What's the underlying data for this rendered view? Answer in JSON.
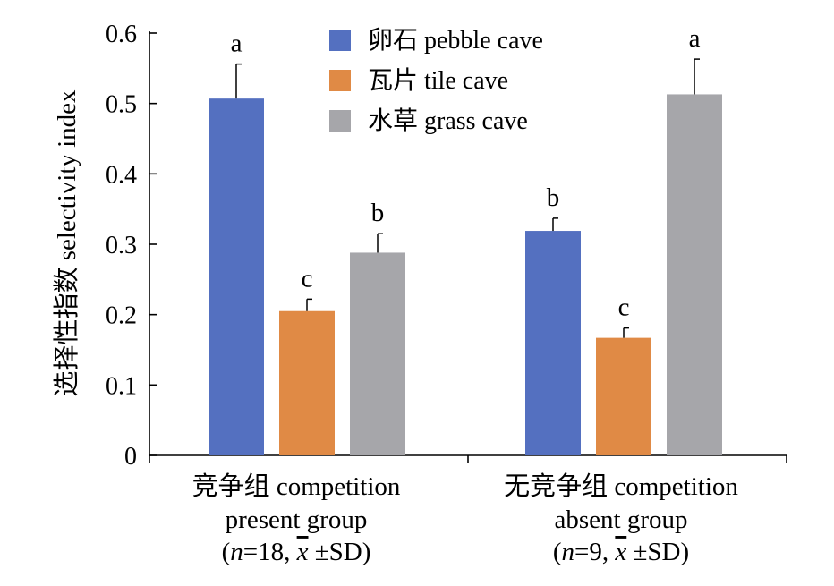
{
  "chart_data": {
    "type": "bar",
    "ylabel": "选择性指数 selectivity index",
    "ylim": [
      0,
      0.6
    ],
    "yticks": [
      {
        "value": 0,
        "label": "0"
      },
      {
        "value": 0.1,
        "label": "0.1"
      },
      {
        "value": 0.2,
        "label": "0.2"
      },
      {
        "value": 0.3,
        "label": "0.3"
      },
      {
        "value": 0.4,
        "label": "0.4"
      },
      {
        "value": 0.5,
        "label": "0.5"
      },
      {
        "value": 0.6,
        "label": "0.6"
      }
    ],
    "categories": [
      {
        "lines": [
          "竞争组 competition",
          "present group"
        ],
        "n_label": "18"
      },
      {
        "lines": [
          "无竞争组 competition",
          "absent group"
        ],
        "n_label": "9"
      }
    ],
    "series": [
      {
        "name": "卵石 pebble cave",
        "color": "#5470c0",
        "values": [
          0.507,
          0.319
        ],
        "errors": [
          0.049,
          0.018
        ],
        "letters": [
          "a",
          "b"
        ]
      },
      {
        "name": "瓦片 tile cave",
        "color": "#e08a45",
        "values": [
          0.205,
          0.167
        ],
        "errors": [
          0.017,
          0.014
        ],
        "letters": [
          "c",
          "c"
        ]
      },
      {
        "name": "水草 grass cave",
        "color": "#a6a6aa",
        "values": [
          0.288,
          0.513
        ],
        "errors": [
          0.027,
          0.05
        ],
        "letters": [
          "b",
          "a"
        ]
      }
    ],
    "n_prefix": "n",
    "n_suffix": "±SD",
    "mean_symbol": "x",
    "legend_position": "top-center",
    "grid": false
  }
}
